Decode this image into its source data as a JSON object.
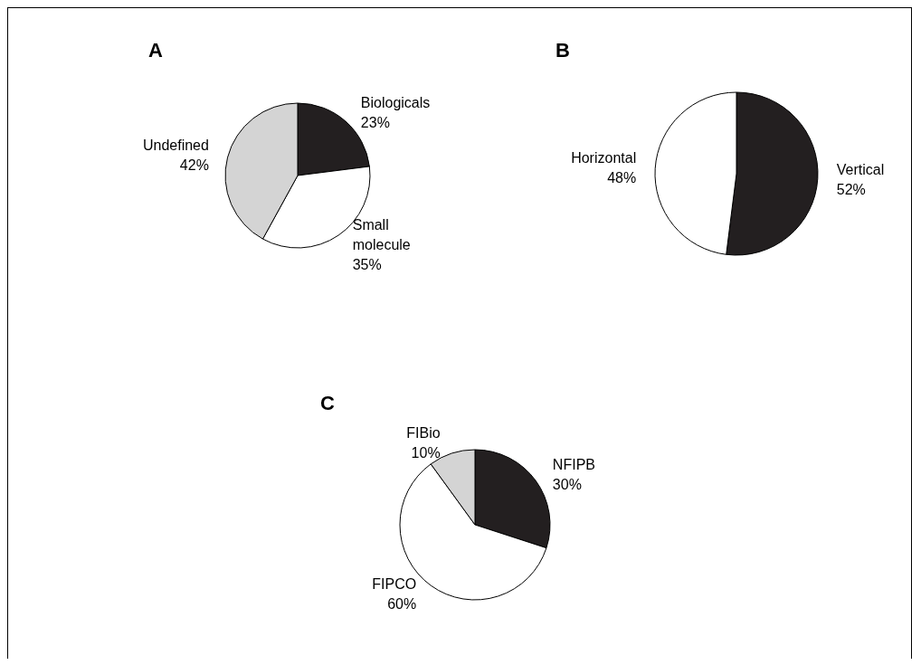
{
  "chart_data": [
    {
      "type": "pie",
      "title": "A",
      "categories": [
        "Biologicals",
        "Small molecule",
        "Undefined"
      ],
      "values": [
        23,
        35,
        42
      ],
      "value_labels": [
        "23%",
        "35%",
        "42%"
      ],
      "colors": [
        "#231f20",
        "#ffffff",
        "#d4d4d4"
      ],
      "legend": false
    },
    {
      "type": "pie",
      "title": "B",
      "categories": [
        "Vertical",
        "Horizontal"
      ],
      "values": [
        52,
        48
      ],
      "value_labels": [
        "52%",
        "48%"
      ],
      "colors": [
        "#231f20",
        "#ffffff"
      ],
      "legend": false
    },
    {
      "type": "pie",
      "title": "C",
      "categories": [
        "NFIPB",
        "FIPCO",
        "FIBio"
      ],
      "values": [
        30,
        60,
        10
      ],
      "value_labels": [
        "30%",
        "60%",
        "10%"
      ],
      "colors": [
        "#231f20",
        "#ffffff",
        "#d4d4d4"
      ],
      "legend": false
    }
  ]
}
